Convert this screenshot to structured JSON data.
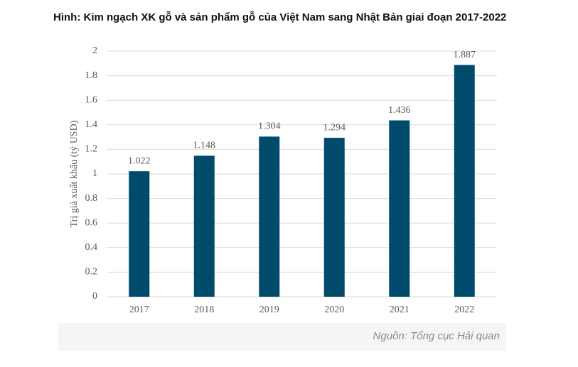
{
  "chart_data": {
    "type": "bar",
    "title": "Hình: Kim ngạch XK gỗ và sản phẩm gỗ của Việt Nam sang Nhật Bản giai đoạn 2017-2022",
    "y_label": "Trị giá xuất khẩu (tỷ USD)",
    "source": "Nguồn: Tổng cục Hải quan",
    "categories": [
      "2017",
      "2018",
      "2019",
      "2020",
      "2021",
      "2022"
    ],
    "values": [
      1.022,
      1.148,
      1.304,
      1.294,
      1.436,
      1.887
    ],
    "color": "#004b6b",
    "ylim": [
      0,
      2
    ],
    "yticks": [
      0,
      0.2,
      0.4,
      0.6,
      0.8,
      1,
      1.2,
      1.4,
      1.6,
      1.8,
      2
    ],
    "grid": true
  }
}
